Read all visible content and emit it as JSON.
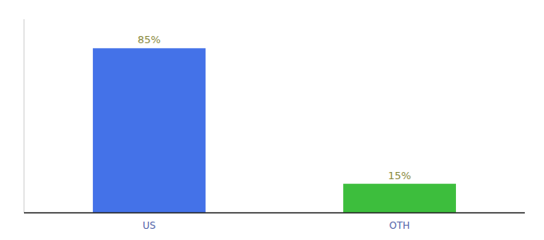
{
  "chart_data": {
    "type": "bar",
    "categories": [
      "US",
      "OTH"
    ],
    "values": [
      85,
      15
    ],
    "value_labels": [
      "85%",
      "15%"
    ],
    "colors": [
      "#4472e8",
      "#3dbe3d"
    ],
    "ylim": [
      0,
      100
    ],
    "data_labels": true,
    "tick_labels": "x"
  }
}
